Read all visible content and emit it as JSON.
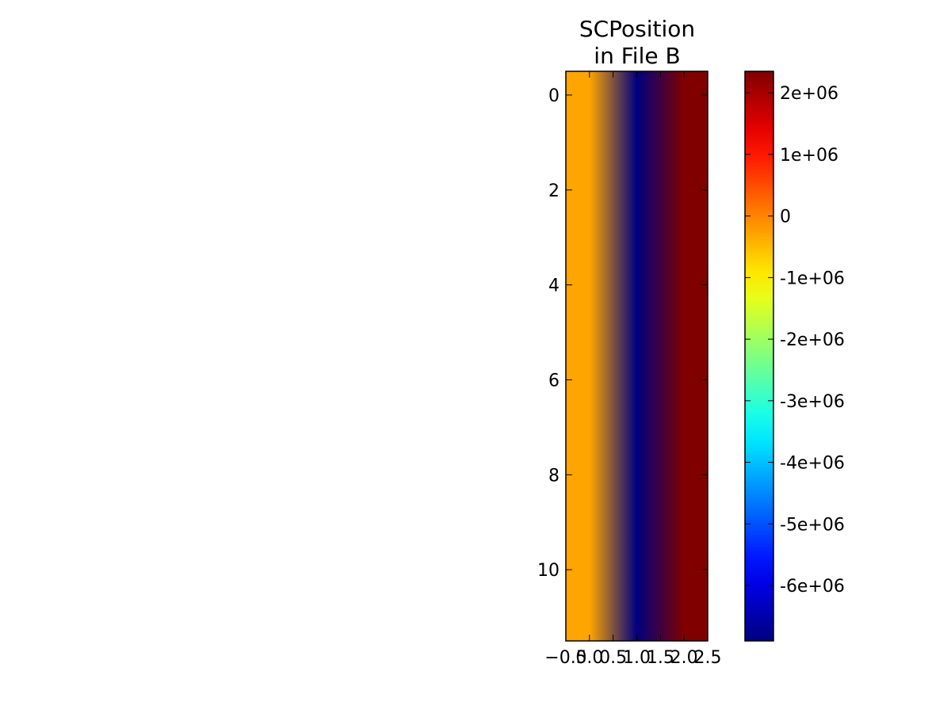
{
  "chart_data": {
    "type": "heatmap",
    "title_lines": [
      "SCPosition",
      "in File B"
    ],
    "xlabel": "",
    "ylabel": "",
    "x_ticks": [
      "−0.5",
      "0.0",
      "0.5",
      "1.0",
      "1.5",
      "2.0",
      "2.5"
    ],
    "x_tick_values": [
      -0.5,
      0.0,
      0.5,
      1.0,
      1.5,
      2.0,
      2.5
    ],
    "x_range": [
      -0.5,
      2.5
    ],
    "y_ticks": [
      "0",
      "2",
      "4",
      "6",
      "8",
      "10"
    ],
    "y_tick_values": [
      0,
      2,
      4,
      6,
      8,
      10
    ],
    "y_range": [
      11.5,
      -0.5
    ],
    "y_inverted": true,
    "columns": [
      0,
      1,
      2
    ],
    "rows": 12,
    "column_values": [
      -300000,
      -6900000,
      2350000
    ],
    "interpolation": "smooth",
    "colormap": "jet",
    "colorbar": {
      "range": [
        -6900000,
        2350000
      ],
      "tick_labels": [
        "2e+06",
        "1e+06",
        "0",
        "-1e+06",
        "-2e+06",
        "-3e+06",
        "-4e+06",
        "-5e+06",
        "-6e+06"
      ],
      "tick_values": [
        2000000,
        1000000,
        0,
        -1000000,
        -2000000,
        -3000000,
        -4000000,
        -5000000,
        -6000000
      ]
    },
    "grid": false
  }
}
